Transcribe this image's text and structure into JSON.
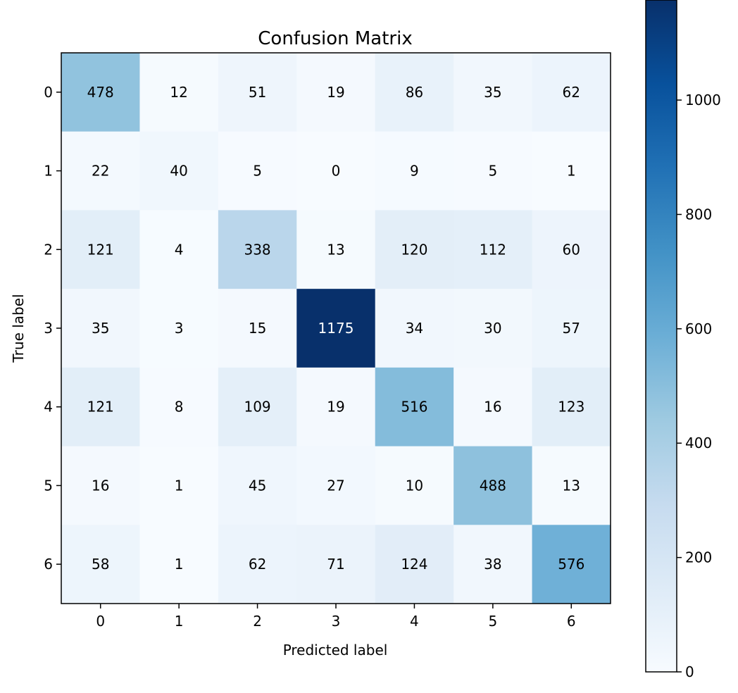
{
  "chart_data": {
    "type": "heatmap",
    "title": "Confusion Matrix",
    "xlabel": "Predicted label",
    "ylabel": "True label",
    "x_categories": [
      "0",
      "1",
      "2",
      "3",
      "4",
      "5",
      "6"
    ],
    "y_categories": [
      "0",
      "1",
      "2",
      "3",
      "4",
      "5",
      "6"
    ],
    "matrix": [
      [
        478,
        12,
        51,
        19,
        86,
        35,
        62
      ],
      [
        22,
        40,
        5,
        0,
        9,
        5,
        1
      ],
      [
        121,
        4,
        338,
        13,
        120,
        112,
        60
      ],
      [
        35,
        3,
        15,
        1175,
        34,
        30,
        57
      ],
      [
        121,
        8,
        109,
        19,
        516,
        16,
        123
      ],
      [
        16,
        1,
        45,
        27,
        10,
        488,
        13
      ],
      [
        58,
        1,
        62,
        71,
        124,
        38,
        576
      ]
    ],
    "colormap": "Blues",
    "value_range": [
      0,
      1175
    ],
    "colorbar": {
      "ticks": [
        "0",
        "200",
        "400",
        "600",
        "800",
        "1000"
      ],
      "tick_values": [
        0,
        200,
        400,
        600,
        800,
        1000
      ]
    },
    "grid": false,
    "legend": "colorbar-right"
  }
}
